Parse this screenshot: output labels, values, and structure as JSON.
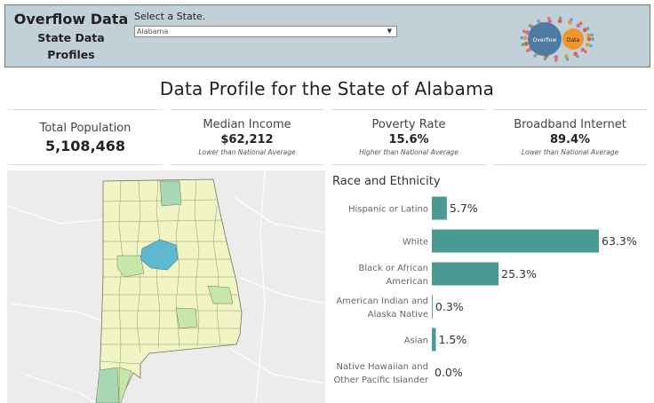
{
  "header": {
    "brand_line1": "Overflow Data",
    "brand_line2": "State Data",
    "brand_line3": "Profiles",
    "selector_label": "Select a State.",
    "selected_state": "Alabama",
    "dropdown_arrow": "▼",
    "logo_text_left": "Overflow",
    "logo_text_right": "Data",
    "logo_colors": {
      "left": "#4f7ba3",
      "right": "#f0962e"
    }
  },
  "page_title": "Data Profile for the State of Alabama",
  "kpis": [
    {
      "name": "Total Population",
      "value": "5,108,468",
      "note": ""
    },
    {
      "name": "Median Income",
      "value": "$62,212",
      "note": "Lower than National Average"
    },
    {
      "name": "Poverty Rate",
      "value": "15.6%",
      "note": "Higher than National Average"
    },
    {
      "name": "Broadband Internet",
      "value": "89.4%",
      "note": "Lower than National Average"
    }
  ],
  "map": {
    "base_color": "#f1f4c4",
    "highlight_color": "#5fb8cf",
    "mid_color": "#c7e6a9",
    "green_color": "#a7d8b3"
  },
  "chart_data": {
    "type": "bar",
    "title": "Race and Ethnicity",
    "orientation": "horizontal",
    "categories": [
      [
        "Hispanic or Latino"
      ],
      [
        "White"
      ],
      [
        "Black or African",
        "American"
      ],
      [
        "American Indian and",
        "Alaska Native"
      ],
      [
        "Asian"
      ],
      [
        "Native Hawaiian and",
        "Other Pacific Islander"
      ]
    ],
    "values": [
      5.7,
      63.3,
      25.3,
      0.3,
      1.5,
      0.0
    ],
    "value_labels": [
      "5.7%",
      "63.3%",
      "25.3%",
      "0.3%",
      "1.5%",
      "0.0%"
    ],
    "xlim": [
      0,
      63.3
    ],
    "bar_color": "#4a9a93"
  }
}
